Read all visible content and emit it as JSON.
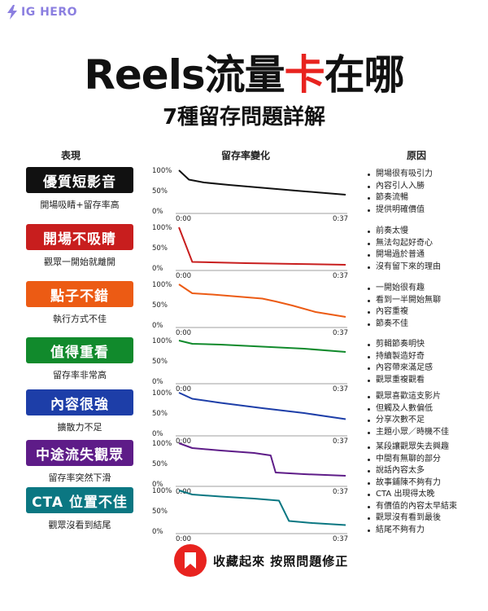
{
  "brand": {
    "name": "IG HERO",
    "icon": "bolt-icon",
    "color": "#8b7fe0"
  },
  "title": {
    "part1": "Reels流量",
    "highlight": "卡",
    "part2": "在哪",
    "highlight_color": "#e8231f"
  },
  "subtitle": "7種留存問題詳解",
  "column_headers": {
    "behavior": "表現",
    "retention": "留存率變化",
    "cause": "原因"
  },
  "axis": {
    "y_ticks": [
      "100%",
      "50%",
      "0%"
    ],
    "x_start": "0:00",
    "x_end": "0:37"
  },
  "rows": [
    {
      "label": "優質短影音",
      "sublabel": "開場吸睛+留存率高",
      "color": "#111111",
      "curve": [
        [
          0,
          100
        ],
        [
          6,
          77
        ],
        [
          15,
          70
        ],
        [
          30,
          64
        ],
        [
          50,
          57
        ],
        [
          70,
          50
        ],
        [
          85,
          45
        ],
        [
          100,
          40
        ]
      ],
      "reasons": [
        "開場很有吸引力",
        "內容引人入勝",
        "節奏流暢",
        "提供明確價值"
      ]
    },
    {
      "label": "開場不吸睛",
      "sublabel": "觀眾一開始就離開",
      "color": "#c81e1e",
      "curve": [
        [
          0,
          100
        ],
        [
          8,
          15
        ],
        [
          40,
          12
        ],
        [
          70,
          10
        ],
        [
          100,
          8
        ]
      ],
      "reasons": [
        "前奏太慢",
        "無法勾起好奇心",
        "開場過於普通",
        "沒有留下來的理由"
      ]
    },
    {
      "label": "點子不錯",
      "sublabel": "執行方式不佳",
      "color": "#ec5b14",
      "curve": [
        [
          0,
          100
        ],
        [
          8,
          78
        ],
        [
          20,
          75
        ],
        [
          35,
          70
        ],
        [
          50,
          65
        ],
        [
          58,
          58
        ],
        [
          68,
          48
        ],
        [
          82,
          32
        ],
        [
          100,
          20
        ]
      ],
      "reasons": [
        "一開始很有趣",
        "看到一半開始無聊",
        "內容重複",
        "節奏不佳"
      ]
    },
    {
      "label": "值得重看",
      "sublabel": "留存率非常高",
      "color": "#118a2c",
      "curve": [
        [
          0,
          100
        ],
        [
          8,
          92
        ],
        [
          25,
          90
        ],
        [
          50,
          85
        ],
        [
          75,
          80
        ],
        [
          100,
          72
        ]
      ],
      "reasons": [
        "剪輯節奏明快",
        "持續製造好奇",
        "內容帶來滿足感",
        "觀眾重複觀看"
      ]
    },
    {
      "label": "內容很強",
      "sublabel": "擴散力不足",
      "color": "#1d3ea8",
      "curve": [
        [
          0,
          100
        ],
        [
          8,
          85
        ],
        [
          25,
          75
        ],
        [
          50,
          62
        ],
        [
          75,
          50
        ],
        [
          100,
          35
        ]
      ],
      "reasons": [
        "觀眾喜歡這支影片",
        "但觸及人數偏低",
        "分享次數不足",
        "主題小眾／時機不佳"
      ]
    },
    {
      "label": "中途流失觀眾",
      "sublabel": "留存率突然下滑",
      "color": "#5e1c88",
      "curve": [
        [
          0,
          100
        ],
        [
          8,
          88
        ],
        [
          25,
          82
        ],
        [
          45,
          76
        ],
        [
          55,
          70
        ],
        [
          58,
          28
        ],
        [
          75,
          24
        ],
        [
          100,
          20
        ]
      ],
      "reasons": [
        "某段讓觀眾失去興趣",
        "中間有無聊的部分",
        "說話內容太多",
        "故事鋪陳不夠有力"
      ]
    },
    {
      "label": "CTA 位置不佳",
      "sublabel": "觀眾沒看到結尾",
      "color": "#0b7782",
      "curve": [
        [
          0,
          100
        ],
        [
          8,
          90
        ],
        [
          25,
          85
        ],
        [
          45,
          80
        ],
        [
          60,
          75
        ],
        [
          66,
          25
        ],
        [
          80,
          20
        ],
        [
          100,
          15
        ]
      ],
      "reasons": [
        "CTA 出現得太晚",
        "有價值的內容太早結束",
        "觀眾沒有看到最後",
        "結尾不夠有力"
      ]
    }
  ],
  "cta": {
    "text": "收藏起來 按照問題修正",
    "icon": "bookmark-icon",
    "color": "#e8231f"
  }
}
